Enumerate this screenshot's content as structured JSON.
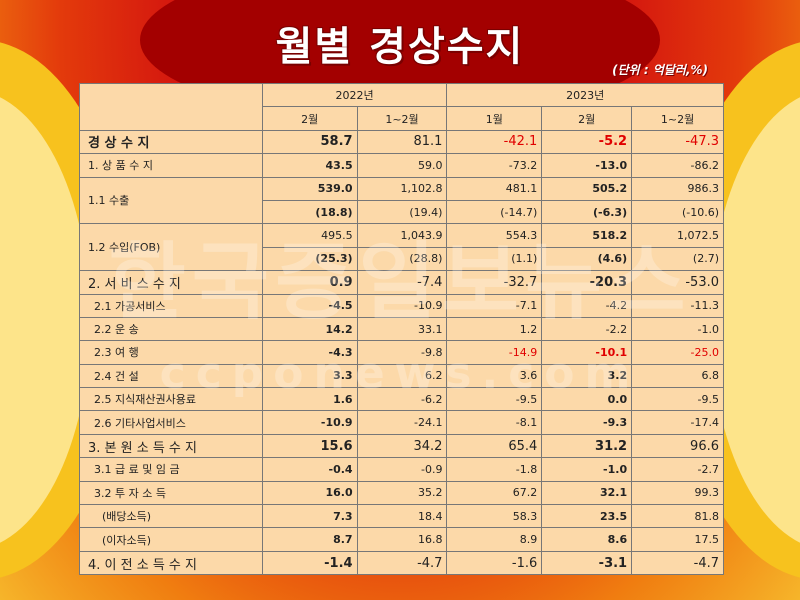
{
  "title": "월별 경상수지",
  "unit": "(단위 : 억달러,%)",
  "watermark": "한국증일보뉴스",
  "watermark_url": "ccponews.com",
  "colors": {
    "red_text": "#e00000",
    "table_bg": "#fcd9a9"
  },
  "header": {
    "y2022": "2022년",
    "y2023": "2023년",
    "c1": "2월",
    "c2": "1~2월",
    "c3": "1월",
    "c4": "2월",
    "c5": "1~2월"
  },
  "rows": [
    {
      "label": "경 상 수 지",
      "v": [
        "58.7",
        "81.1",
        "-42.1",
        "-5.2",
        "-47.3"
      ]
    },
    {
      "label": "1. 상 품 수 지",
      "v": [
        "43.5",
        "59.0",
        "-73.2",
        "-13.0",
        "-86.2"
      ]
    },
    {
      "label": "1.1 수출",
      "v": [
        "539.0",
        "1,102.8",
        "481.1",
        "505.2",
        "986.3"
      ],
      "sub": [
        "(18.8)",
        "(19.4)",
        "(-14.7)",
        "(-6.3)",
        "(-10.6)"
      ]
    },
    {
      "label": "1.2 수입(FOB)",
      "v": [
        "495.5",
        "1,043.9",
        "554.3",
        "518.2",
        "1,072.5"
      ],
      "sub": [
        "(25.3)",
        "(28.8)",
        "(1.1)",
        "(4.6)",
        "(2.7)"
      ]
    },
    {
      "label": "2. 서 비 스 수 지",
      "v": [
        "0.9",
        "-7.4",
        "-32.7",
        "-20.3",
        "-53.0"
      ]
    },
    {
      "label": "2.1 가공서비스",
      "v": [
        "-4.5",
        "-10.9",
        "-7.1",
        "-4.2",
        "-11.3"
      ]
    },
    {
      "label": "2.2 운 송",
      "v": [
        "14.2",
        "33.1",
        "1.2",
        "-2.2",
        "-1.0"
      ]
    },
    {
      "label": "2.3 여 행",
      "v": [
        "-4.3",
        "-9.8",
        "-14.9",
        "-10.1",
        "-25.0"
      ]
    },
    {
      "label": "2.4 건 설",
      "v": [
        "3.3",
        "6.2",
        "3.6",
        "3.2",
        "6.8"
      ]
    },
    {
      "label": "2.5 지식재산권사용료",
      "v": [
        "1.6",
        "-6.2",
        "-9.5",
        "0.0",
        "-9.5"
      ]
    },
    {
      "label": "2.6 기타사업서비스",
      "v": [
        "-10.9",
        "-24.1",
        "-8.1",
        "-9.3",
        "-17.4"
      ]
    },
    {
      "label": "3. 본 원 소 득 수 지",
      "v": [
        "15.6",
        "34.2",
        "65.4",
        "31.2",
        "96.6"
      ]
    },
    {
      "label": "3.1 급 료 및 임 금",
      "v": [
        "-0.4",
        "-0.9",
        "-1.8",
        "-1.0",
        "-2.7"
      ]
    },
    {
      "label": "3.2 투 자 소 득",
      "v": [
        "16.0",
        "35.2",
        "67.2",
        "32.1",
        "99.3"
      ]
    },
    {
      "label": "(배당소득)",
      "v": [
        "7.3",
        "18.4",
        "58.3",
        "23.5",
        "81.8"
      ]
    },
    {
      "label": "(이자소득)",
      "v": [
        "8.7",
        "16.8",
        "8.9",
        "8.6",
        "17.5"
      ]
    },
    {
      "label": "4. 이 전 소 득 수 지",
      "v": [
        "-1.4",
        "-4.7",
        "-1.6",
        "-3.1",
        "-4.7"
      ]
    }
  ],
  "chart_data": {
    "type": "table",
    "title": "월별 경상수지",
    "unit": "(단위 : 억달러,%)",
    "columns": [
      "2022년 2월",
      "2022년 1~2월",
      "2023년 1월",
      "2023년 2월",
      "2023년 1~2월"
    ]
  }
}
